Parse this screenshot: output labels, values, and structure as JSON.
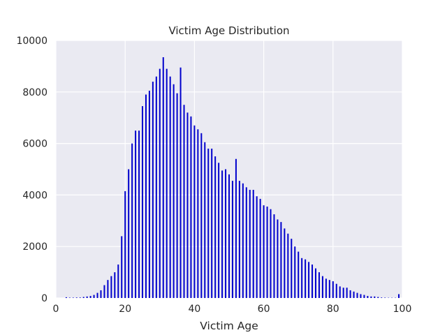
{
  "chart_data": {
    "type": "bar",
    "title": "Victim Age Distribution",
    "xlabel": "Victim Age",
    "ylabel": "",
    "xlim": [
      0,
      100
    ],
    "ylim": [
      0,
      10000
    ],
    "xticks": [
      0,
      20,
      40,
      60,
      80,
      100
    ],
    "yticks": [
      0,
      2000,
      4000,
      6000,
      8000,
      10000
    ],
    "x_tick_labels": [
      "0",
      "20",
      "40",
      "60",
      "80",
      "100"
    ],
    "y_tick_labels": [
      "0",
      "2000",
      "4000",
      "6000",
      "8000",
      "10000"
    ],
    "grid": true,
    "legend": "none",
    "colors": {
      "plot_background": "#eaeaf2",
      "grid": "#ffffff",
      "bar": "#0000cc",
      "text": "#262626"
    },
    "x": [
      3,
      4,
      5,
      6,
      7,
      8,
      9,
      10,
      11,
      12,
      13,
      14,
      15,
      16,
      17,
      18,
      19,
      20,
      21,
      22,
      23,
      24,
      25,
      26,
      27,
      28,
      29,
      30,
      31,
      32,
      33,
      34,
      35,
      36,
      37,
      38,
      39,
      40,
      41,
      42,
      43,
      44,
      45,
      46,
      47,
      48,
      49,
      50,
      51,
      52,
      53,
      54,
      55,
      56,
      57,
      58,
      59,
      60,
      61,
      62,
      63,
      64,
      65,
      66,
      67,
      68,
      69,
      70,
      71,
      72,
      73,
      74,
      75,
      76,
      77,
      78,
      79,
      80,
      81,
      82,
      83,
      84,
      85,
      86,
      87,
      88,
      89,
      90,
      91,
      92,
      93,
      94,
      95,
      96,
      97,
      98,
      99
    ],
    "values": [
      30,
      15,
      15,
      20,
      20,
      40,
      60,
      80,
      120,
      200,
      300,
      500,
      700,
      850,
      1000,
      1300,
      2400,
      4150,
      5000,
      6000,
      6500,
      6500,
      7450,
      7900,
      8050,
      8400,
      8600,
      8900,
      9350,
      8900,
      8600,
      8300,
      7950,
      8950,
      7500,
      7200,
      7050,
      6700,
      6550,
      6400,
      6050,
      5800,
      5800,
      5500,
      5250,
      4950,
      5000,
      4800,
      4550,
      5400,
      4550,
      4450,
      4300,
      4200,
      4200,
      3950,
      3850,
      3600,
      3550,
      3450,
      3250,
      3050,
      2950,
      2700,
      2500,
      2300,
      2000,
      1800,
      1550,
      1500,
      1400,
      1300,
      1150,
      1000,
      850,
      750,
      700,
      650,
      550,
      450,
      400,
      400,
      300,
      250,
      200,
      150,
      120,
      80,
      60,
      60,
      40,
      20,
      15,
      10,
      10,
      10,
      150
    ]
  }
}
